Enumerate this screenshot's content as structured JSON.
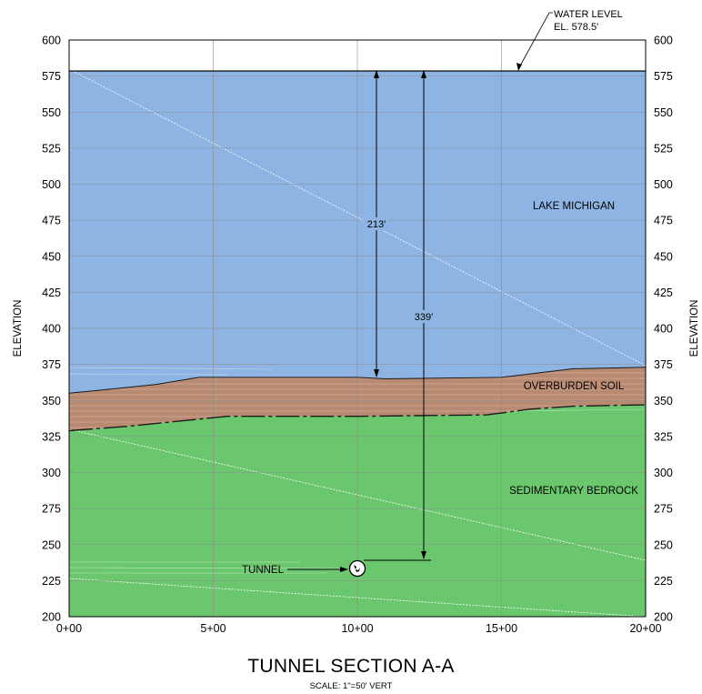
{
  "title": "TUNNEL SECTION A-A",
  "scale_note": "SCALE:  1\"=50' VERT",
  "axis": {
    "ylabel_left": "ELEVATION",
    "ylabel_right": "ELEVATION",
    "y_ticks": [
      "600",
      "575",
      "550",
      "525",
      "500",
      "475",
      "450",
      "425",
      "400",
      "375",
      "350",
      "325",
      "300",
      "275",
      "250",
      "225",
      "200"
    ],
    "x_ticks": [
      "0+00",
      "5+00",
      "10+00",
      "15+00",
      "20+00"
    ]
  },
  "labels": {
    "water_level_line1": "WATER LEVEL",
    "water_level_line2": "EL. 578.5'",
    "lake": "LAKE MICHIGAN",
    "overburden": "OVERBURDEN SOIL",
    "bedrock": "SEDIMENTARY BEDROCK",
    "tunnel": "TUNNEL"
  },
  "dimensions": {
    "lake_depth": "213'",
    "tunnel_depth": "339'"
  },
  "colors": {
    "water": "#8DB4E2",
    "soil": "#B98A72",
    "bedrock": "#6BC76E",
    "grid": "#8c8c8c"
  },
  "chart_data": {
    "type": "cross-section",
    "xlabel": "",
    "ylabel": "ELEVATION",
    "ylim": [
      200,
      600
    ],
    "xlim_stations": [
      0,
      2000
    ],
    "water_elevation": 578.5,
    "soil_top": [
      [
        0,
        355
      ],
      [
        100,
        357
      ],
      [
        300,
        361
      ],
      [
        450,
        366
      ],
      [
        1000,
        366
      ],
      [
        1100,
        365
      ],
      [
        1500,
        366
      ],
      [
        1750,
        372
      ],
      [
        2000,
        373
      ]
    ],
    "soil_bottom": [
      [
        0,
        329
      ],
      [
        200,
        332
      ],
      [
        400,
        336
      ],
      [
        550,
        339
      ],
      [
        1000,
        339
      ],
      [
        1450,
        340
      ],
      [
        1600,
        344
      ],
      [
        1750,
        346
      ],
      [
        2000,
        347
      ]
    ],
    "tunnel": {
      "station": 1000,
      "elevation": 239
    },
    "dimension_lake_depth_ft": 213,
    "dimension_tunnel_depth_ft": 339
  }
}
